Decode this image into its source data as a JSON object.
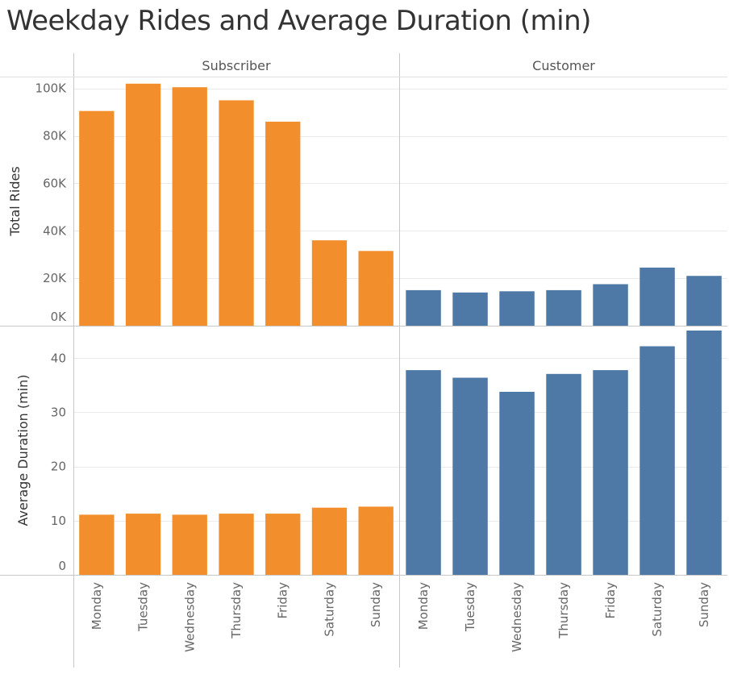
{
  "chart_title": "Weekday Rides and Average Duration (min)",
  "colors": {
    "subscriber": "#F28E2B",
    "customer": "#4E79A7",
    "grid": "#EBEBEB",
    "rule": "#C8C8C8"
  },
  "chart_data": {
    "type": "bar",
    "title": "Weekday Rides and Average Duration (min)",
    "columns": [
      "Subscriber",
      "Customer"
    ],
    "categories": [
      "Monday",
      "Tuesday",
      "Wednesday",
      "Thursday",
      "Friday",
      "Saturday",
      "Sunday"
    ],
    "rows": [
      {
        "ylabel": "Total Rides",
        "ylim": [
          0,
          105000
        ],
        "ticks": [
          0,
          20000,
          40000,
          60000,
          80000,
          100000
        ],
        "tick_labels": [
          "0K",
          "20K",
          "40K",
          "60K",
          "80K",
          "100K"
        ],
        "series": [
          {
            "name": "Subscriber",
            "values": [
              90500,
              102000,
              100500,
              95000,
              86000,
              36000,
              31500
            ]
          },
          {
            "name": "Customer",
            "values": [
              15000,
              14000,
              14500,
              15000,
              17500,
              24500,
              21000
            ]
          }
        ]
      },
      {
        "ylabel": "Average Duration (min)",
        "ylim": [
          0,
          46
        ],
        "ticks": [
          0,
          10,
          20,
          30,
          40
        ],
        "tick_labels": [
          "0",
          "10",
          "20",
          "30",
          "40"
        ],
        "series": [
          {
            "name": "Subscriber",
            "values": [
              11.1,
              11.3,
              11.1,
              11.3,
              11.3,
              12.4,
              12.6
            ]
          },
          {
            "name": "Customer",
            "values": [
              37.8,
              36.4,
              33.8,
              37.1,
              37.8,
              42.2,
              45.1
            ]
          }
        ]
      }
    ],
    "grid": true,
    "legend": "none"
  }
}
